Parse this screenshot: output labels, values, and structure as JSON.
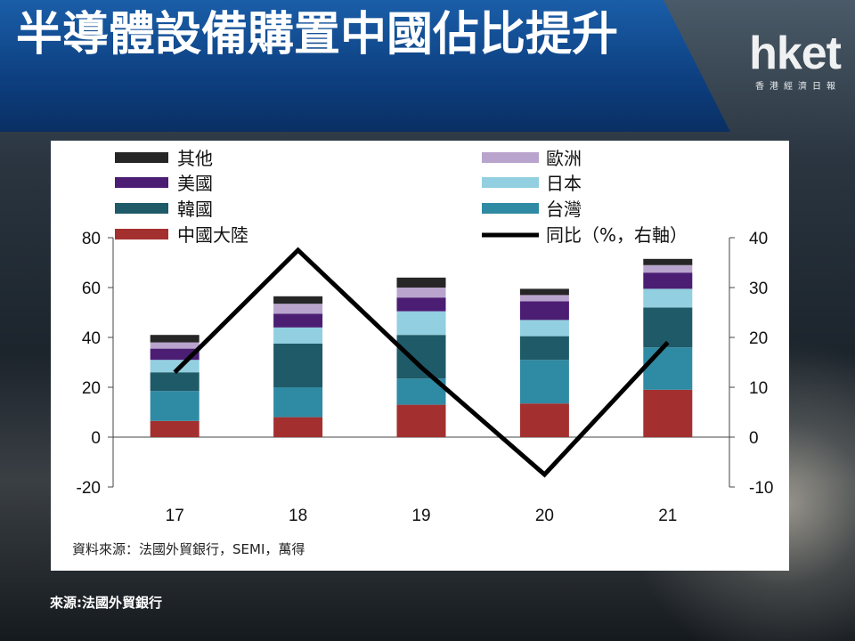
{
  "headline": "半導體設備購置中國佔比提升",
  "logo": {
    "main": "hket",
    "sub": "香港經濟日報"
  },
  "footer": {
    "source": "來源:法國外貿銀行"
  },
  "colors": {
    "其他": "#262626",
    "歐洲": "#b8a4cc",
    "美國": "#4b1d73",
    "日本": "#92cfe0",
    "韓國": "#1f5a68",
    "台灣": "#2f8aa3",
    "中國大陸": "#a3302f",
    "同比": "#000000"
  },
  "chart_data": {
    "type": "bar",
    "stacked": true,
    "categories": [
      "17",
      "18",
      "19",
      "20",
      "21"
    ],
    "series": [
      {
        "name": "中國大陸",
        "values": [
          6.5,
          8,
          13,
          13.5,
          19
        ]
      },
      {
        "name": "台灣",
        "values": [
          12,
          12,
          10.5,
          17.5,
          17
        ]
      },
      {
        "name": "韓國",
        "values": [
          7.5,
          17.5,
          17.5,
          9.5,
          16
        ]
      },
      {
        "name": "日本",
        "values": [
          5,
          6.5,
          9.5,
          6.5,
          7.5
        ]
      },
      {
        "name": "美國",
        "values": [
          4.5,
          5.5,
          5.5,
          7.5,
          6.5
        ]
      },
      {
        "name": "歐洲",
        "values": [
          2.5,
          4,
          4,
          2.5,
          3
        ]
      },
      {
        "name": "其他",
        "values": [
          3,
          3,
          4,
          2.5,
          2.5
        ]
      }
    ],
    "line": {
      "name": "同比（%，右軸）",
      "axis": "right",
      "values": [
        13,
        37.5,
        14,
        -7.5,
        19
      ]
    },
    "legend": {
      "left": [
        "其他",
        "美國",
        "韓國",
        "中國大陸"
      ],
      "right": [
        "歐洲",
        "日本",
        "台灣",
        "同比（%，右軸）"
      ]
    },
    "y_left": {
      "ylim": [
        -20,
        80
      ],
      "ticks": [
        "80",
        "60",
        "40",
        "20",
        "0",
        "-20"
      ]
    },
    "y_right": {
      "ylim": [
        -10,
        40
      ],
      "ticks": [
        "40",
        "30",
        "20",
        "10",
        "0",
        "-10"
      ]
    },
    "source_note": "資料來源：法國外貿銀行，SEMI，萬得"
  }
}
